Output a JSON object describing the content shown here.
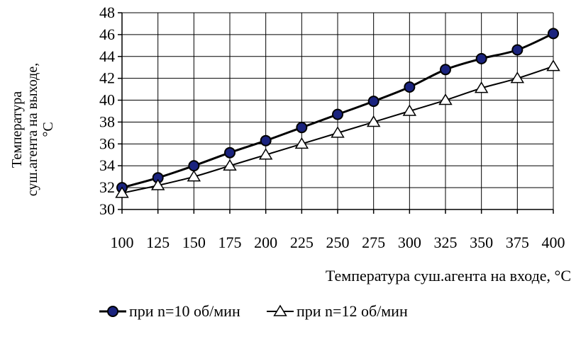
{
  "chart_data": {
    "type": "line",
    "x": [
      100,
      125,
      150,
      175,
      200,
      225,
      250,
      275,
      300,
      325,
      350,
      375,
      400
    ],
    "xlabel": "Температура суш.агента на входе, °С",
    "ylabel_lines": [
      "Температура",
      "суш.агента на выходе,",
      "°С"
    ],
    "ylim": [
      30,
      48
    ],
    "yticks": [
      30,
      32,
      34,
      36,
      38,
      40,
      42,
      44,
      46,
      48
    ],
    "grid": true,
    "legend_position": "bottom",
    "series": [
      {
        "name": "при n=10 об/мин",
        "marker": "circle",
        "marker_color": "#1a237e",
        "line_color": "#000000",
        "values": [
          32.0,
          32.9,
          34.0,
          35.2,
          36.3,
          37.5,
          38.7,
          39.9,
          41.2,
          42.8,
          43.8,
          44.6,
          46.1
        ]
      },
      {
        "name": "при n=12 об/мин",
        "marker": "triangle",
        "marker_color": "#ffffff",
        "line_color": "#000000",
        "values": [
          31.5,
          32.2,
          33.0,
          34.0,
          35.0,
          36.0,
          37.0,
          38.0,
          39.0,
          40.0,
          41.1,
          42.0,
          43.1
        ]
      }
    ]
  }
}
